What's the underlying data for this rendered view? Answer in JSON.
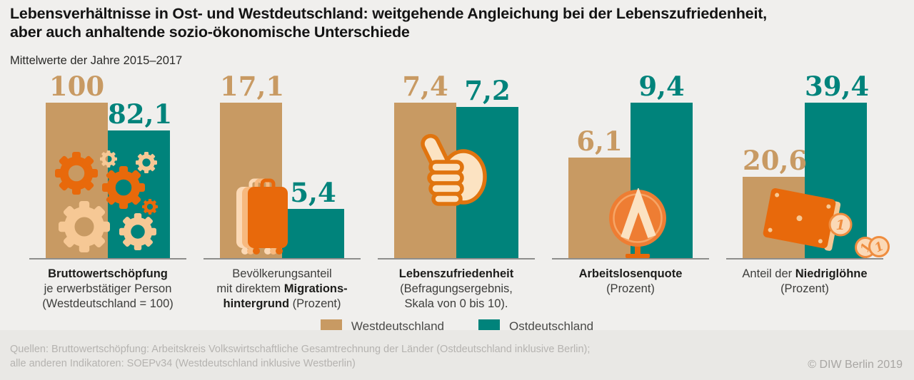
{
  "title": {
    "line1": "Lebensverhältnisse in Ost- und Westdeutschland: weitgehende Angleichung bei der Lebenszufriedenheit,",
    "line2": "aber auch anhaltende sozio-ökonomische Unterschiede"
  },
  "subtitle": "Mittelwerte der Jahre 2015–2017",
  "legend": {
    "west": "Westdeutschland",
    "east": "Ostdeutschland"
  },
  "footer": {
    "line1": "Quellen: Bruttowertschöpfung: Arbeitskreis Volkswirtschaftliche Gesamtrechnung der Länder (Ostdeutschland inklusive Berlin);",
    "line2": "alle anderen Indikatoren: SOEPv34 (Westdeutschland inklusive Westberlin)"
  },
  "copyright": "© DIW Berlin 2019",
  "colors": {
    "west": "#c89a63",
    "east": "#00837b",
    "orange": "#e8690b",
    "peach": "#f6c895",
    "peach-light": "#fbd9b6",
    "peach-mid": "#f7b97f",
    "hand": "#fce3c2",
    "hand-stroke": "#e0740f",
    "agentur": "#ee7d33",
    "agentur-ring": "#f6a566",
    "agentur-light": "#fbe2c2",
    "coin-stroke": "#ef8d3f",
    "baseline": "#8e8e8c"
  },
  "chart_data": {
    "type": "bar",
    "title": "Lebensverhältnisse in Ost- und Westdeutschland",
    "subtitle": "Mittelwerte der Jahre 2015–2017",
    "categories": [
      "Bruttowertschöpfung je erwerbstätiger Person (Westdeutschland = 100)",
      "Bevölkerungsanteil mit direktem Migrationshintergrund (Prozent)",
      "Lebenszufriedenheit (Befragungsergebnis, Skala von 0 bis 10).",
      "Arbeitslosenquote (Prozent)",
      "Anteil der Niedriglöhne (Prozent)"
    ],
    "series": [
      {
        "name": "Westdeutschland",
        "values": [
          100,
          17.1,
          7.4,
          6.1,
          20.6
        ]
      },
      {
        "name": "Ostdeutschland",
        "values": [
          82.1,
          5.4,
          7.2,
          9.4,
          39.4
        ]
      }
    ],
    "legend_position": "bottom",
    "grid": false,
    "charts": [
      {
        "icon": "gears",
        "west": 100,
        "east": 82.1,
        "west_label": "100",
        "east_label": "82,1",
        "caption": [
          [
            {
              "t": "Bruttowertschöpfung",
              "b": true
            }
          ],
          [
            {
              "t": "je erwerbstätiger Person",
              "b": false
            }
          ],
          [
            {
              "t": "(Westdeutschland = 100)",
              "b": false
            }
          ]
        ]
      },
      {
        "icon": "suitcase",
        "west": 17.1,
        "east": 5.4,
        "west_label": "17,1",
        "east_label": "5,4",
        "caption": [
          [
            {
              "t": "Bevölkerungsanteil",
              "b": false
            }
          ],
          [
            {
              "t": "mit direktem ",
              "b": false
            },
            {
              "t": "Migrations-",
              "b": true
            }
          ],
          [
            {
              "t": "hintergrund",
              "b": true
            },
            {
              "t": " (Prozent)",
              "b": false
            }
          ]
        ]
      },
      {
        "icon": "thumbs-up",
        "west": 7.4,
        "east": 7.2,
        "west_label": "7,4",
        "east_label": "7,2",
        "caption": [
          [
            {
              "t": "Lebenszufriedenheit",
              "b": true
            }
          ],
          [
            {
              "t": "(Befragungsergebnis,",
              "b": false
            }
          ],
          [
            {
              "t": "Skala von 0 bis 10).",
              "b": false
            }
          ]
        ]
      },
      {
        "icon": "employment-agency",
        "west": 6.1,
        "east": 9.4,
        "west_label": "6,1",
        "east_label": "9,4",
        "caption": [
          [
            {
              "t": "Arbeitslosenquote",
              "b": true
            }
          ],
          [
            {
              "t": "(Prozent)",
              "b": false
            }
          ]
        ]
      },
      {
        "icon": "wallet",
        "west": 20.6,
        "east": 39.4,
        "west_label": "20,6",
        "east_label": "39,4",
        "coin_text": "1",
        "caption": [
          [
            {
              "t": "Anteil der ",
              "b": false
            },
            {
              "t": "Niedriglöhne",
              "b": true
            }
          ],
          [
            {
              "t": "(Prozent)",
              "b": false
            }
          ]
        ]
      }
    ]
  }
}
